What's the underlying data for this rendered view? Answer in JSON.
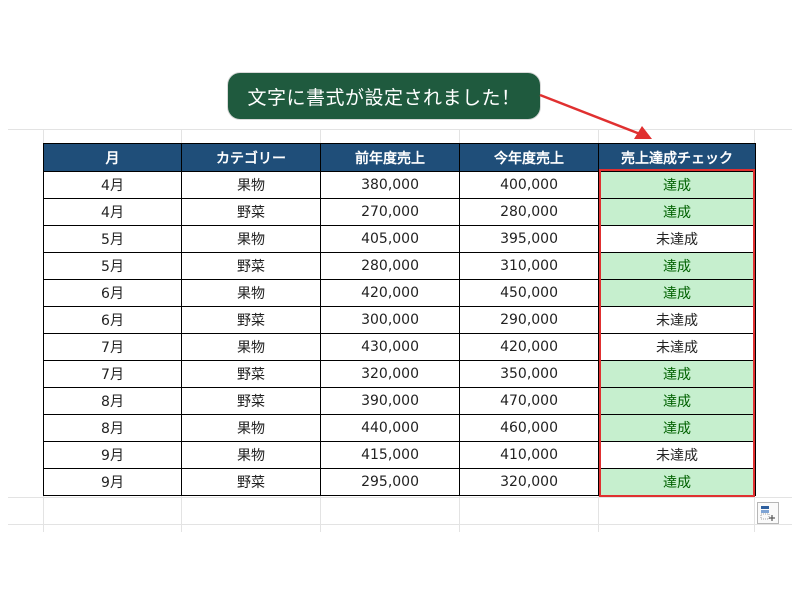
{
  "callout": {
    "text": "文字に書式が設定されました！"
  },
  "table": {
    "headers": [
      "月",
      "カテゴリー",
      "前年度売上",
      "今年度売上",
      "売上達成チェック"
    ],
    "rows": [
      {
        "month": "4月",
        "category": "果物",
        "prev": "380,000",
        "curr": "400,000",
        "check": "達成"
      },
      {
        "month": "4月",
        "category": "野菜",
        "prev": "270,000",
        "curr": "280,000",
        "check": "達成"
      },
      {
        "month": "5月",
        "category": "果物",
        "prev": "405,000",
        "curr": "395,000",
        "check": "未達成"
      },
      {
        "month": "5月",
        "category": "野菜",
        "prev": "280,000",
        "curr": "310,000",
        "check": "達成"
      },
      {
        "month": "6月",
        "category": "果物",
        "prev": "420,000",
        "curr": "450,000",
        "check": "達成"
      },
      {
        "month": "6月",
        "category": "野菜",
        "prev": "300,000",
        "curr": "290,000",
        "check": "未達成"
      },
      {
        "month": "7月",
        "category": "果物",
        "prev": "430,000",
        "curr": "420,000",
        "check": "未達成"
      },
      {
        "month": "7月",
        "category": "野菜",
        "prev": "320,000",
        "curr": "350,000",
        "check": "達成"
      },
      {
        "month": "8月",
        "category": "野菜",
        "prev": "390,000",
        "curr": "470,000",
        "check": "達成"
      },
      {
        "month": "8月",
        "category": "果物",
        "prev": "440,000",
        "curr": "460,000",
        "check": "達成"
      },
      {
        "month": "9月",
        "category": "果物",
        "prev": "415,000",
        "curr": "410,000",
        "check": "未達成"
      },
      {
        "month": "9月",
        "category": "野菜",
        "prev": "295,000",
        "curr": "320,000",
        "check": "達成"
      }
    ]
  },
  "colors": {
    "header_bg": "#1f4e79",
    "achieved_bg": "#c6efce",
    "achieved_text": "#006100",
    "callout_bg": "#1f5a3e",
    "highlight": "#e03030"
  },
  "quick_analysis": {
    "icon": "quick-analysis-icon"
  }
}
